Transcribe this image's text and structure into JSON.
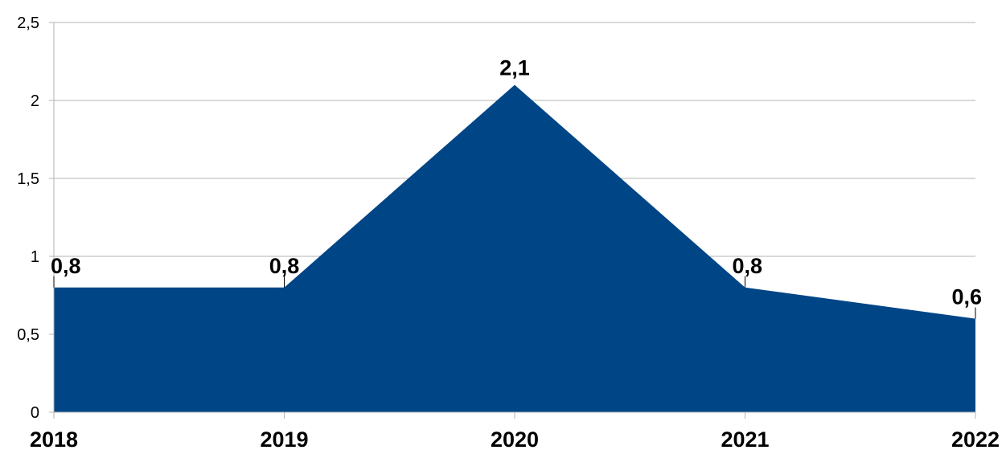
{
  "chart_data": {
    "type": "area",
    "categories": [
      "2018",
      "2019",
      "2020",
      "2021",
      "2022"
    ],
    "values": [
      0.8,
      0.8,
      2.1,
      0.8,
      0.6
    ],
    "data_labels": [
      "0,8",
      "0,8",
      "2,1",
      "0,8",
      "0,6"
    ],
    "y_ticks": [
      0,
      0.5,
      1,
      1.5,
      2,
      2.5
    ],
    "y_tick_labels": [
      "0",
      "0,5",
      "1",
      "1,5",
      "2",
      "2,5"
    ],
    "ylim": [
      0,
      2.5
    ],
    "grid": true,
    "legend": "none",
    "colors": {
      "area": "#004586",
      "grid": "#b3b3b3",
      "axis": "#b3b3b3",
      "text": "#000000"
    }
  }
}
